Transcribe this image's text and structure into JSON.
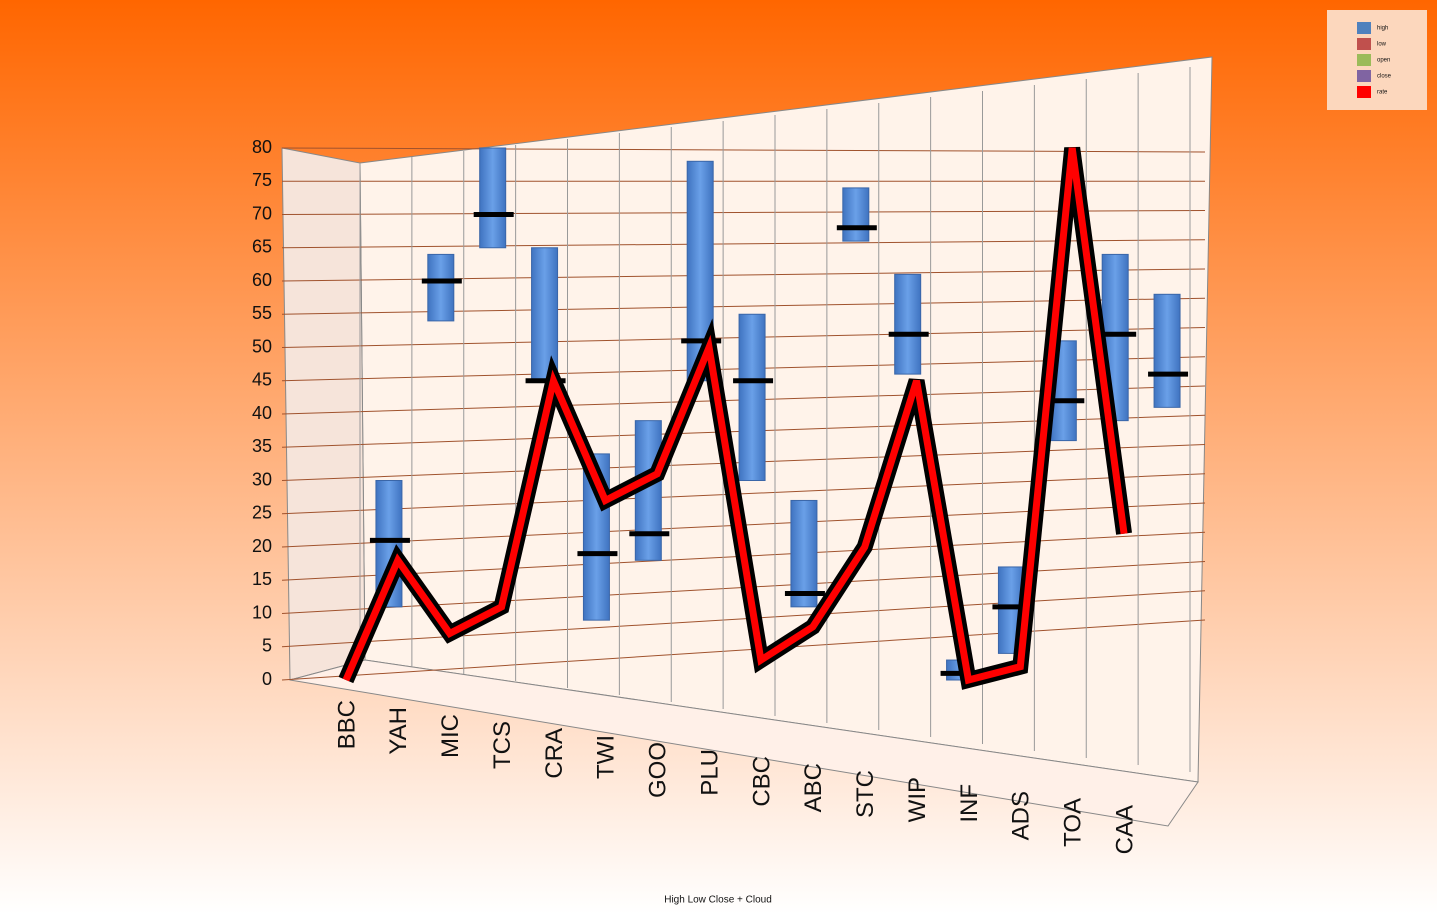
{
  "chart_data": {
    "type": "stock",
    "title": "High Low Close + Cloud",
    "categories": [
      "BBC",
      "YAH",
      "MIC",
      "TCS",
      "CRA",
      "TWI",
      "GOO",
      "PLU",
      "CBC",
      "ABC",
      "STC",
      "WIP",
      "INF",
      "ADS",
      "TOA",
      "CAA"
    ],
    "series": [
      {
        "name": "high",
        "color": "#4f81bd",
        "values": [
          30,
          64,
          80,
          65,
          34,
          39,
          78,
          55,
          27,
          74,
          61,
          3,
          17,
          51,
          64,
          58
        ]
      },
      {
        "name": "low",
        "color": "#c0504d",
        "values": [
          11,
          54,
          65,
          45,
          9,
          18,
          45,
          30,
          11,
          66,
          46,
          0,
          4,
          36,
          39,
          41
        ]
      },
      {
        "name": "open",
        "color": "#9bbb59",
        "values": [
          null,
          null,
          null,
          null,
          null,
          null,
          null,
          null,
          null,
          null,
          null,
          null,
          null,
          null,
          null,
          null
        ]
      },
      {
        "name": "close",
        "color": "#8064a2",
        "values": [
          21,
          60,
          70,
          45,
          19,
          22,
          51,
          45,
          13,
          68,
          52,
          1,
          11,
          42,
          52,
          46
        ]
      },
      {
        "name": "rate",
        "color": "#ff0000",
        "values": [
          0,
          18,
          7,
          11,
          45,
          27,
          31,
          50,
          3,
          8,
          20,
          45,
          0,
          2,
          80,
          22
        ]
      }
    ],
    "ylim": [
      0,
      80
    ],
    "yticks": [
      0,
      5,
      10,
      15,
      20,
      25,
      30,
      35,
      40,
      45,
      50,
      55,
      60,
      65,
      70,
      75,
      80
    ],
    "grid": true,
    "legend": "top-right"
  }
}
